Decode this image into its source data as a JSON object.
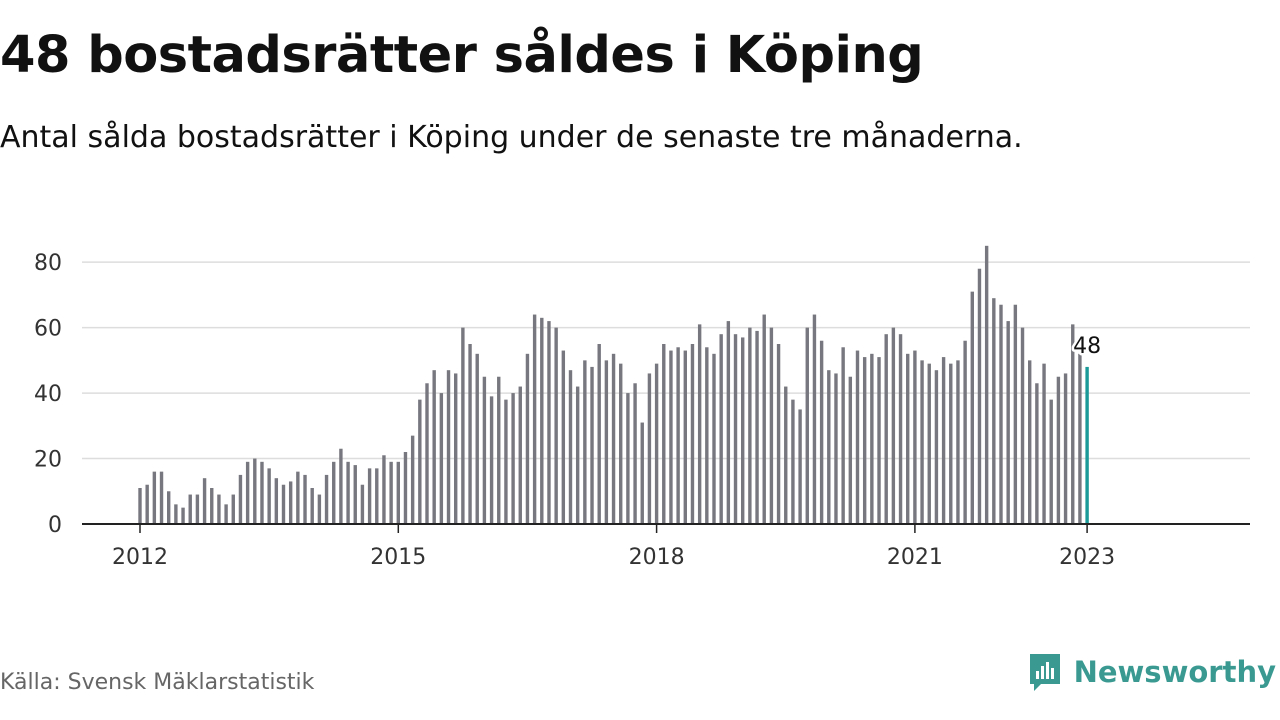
{
  "header": {
    "title": "48 bostadsrätter såldes i Köping",
    "subtitle": "Antal sålda bostadsrätter i Köping under de senaste tre månaderna."
  },
  "footer": {
    "source": "Källa: Svensk Mäklarstatistik",
    "brand": "Newsworthy",
    "brand_icon": "bar-chart-speech-bubble-icon"
  },
  "colors": {
    "bar": "#77777f",
    "highlight": "#1a9a98",
    "grid": "#dddddd",
    "axis": "#222222",
    "brand": "#3a9a92"
  },
  "chart_data": {
    "type": "bar",
    "x_axis_type": "time",
    "first_period": "2012-01",
    "period": "month",
    "last_period": "2023-01",
    "values": [
      11,
      12,
      16,
      16,
      10,
      6,
      5,
      9,
      9,
      14,
      11,
      9,
      6,
      9,
      15,
      19,
      20,
      19,
      17,
      14,
      12,
      13,
      16,
      15,
      11,
      9,
      15,
      19,
      23,
      19,
      18,
      12,
      17,
      17,
      21,
      19,
      19,
      22,
      27,
      38,
      43,
      47,
      40,
      47,
      46,
      60,
      55,
      52,
      45,
      39,
      45,
      38,
      40,
      42,
      52,
      64,
      63,
      62,
      60,
      53,
      47,
      42,
      50,
      48,
      55,
      50,
      52,
      49,
      40,
      43,
      31,
      46,
      49,
      55,
      53,
      54,
      53,
      55,
      61,
      54,
      52,
      58,
      62,
      58,
      57,
      60,
      59,
      64,
      60,
      55,
      42,
      38,
      35,
      60,
      64,
      56,
      47,
      46,
      54,
      45,
      53,
      51,
      52,
      51,
      58,
      60,
      58,
      52,
      53,
      50,
      49,
      47,
      51,
      49,
      50,
      56,
      71,
      78,
      85,
      69,
      67,
      62,
      67,
      60,
      50,
      43,
      49,
      38,
      45,
      46,
      61,
      52,
      48
    ],
    "highlight_last": true,
    "last_value_label": "48",
    "y_ticks": [
      0,
      20,
      40,
      60,
      80
    ],
    "x_ticks": [
      "2012",
      "2015",
      "2018",
      "2021",
      "2023"
    ],
    "ylim": [
      0,
      88
    ],
    "grid": true,
    "title": "48 bostadsrätter såldes i Köping",
    "subtitle": "Antal sålda bostadsrätter i Köping under de senaste tre månaderna."
  }
}
